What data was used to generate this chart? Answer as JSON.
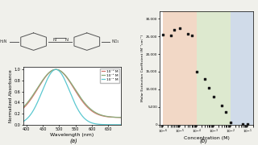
{
  "bg_color": "#f0f0eb",
  "panel_a": {
    "legend_labels": [
      "10⁻⁵ M",
      "10⁻³ M",
      "10⁻¹ M"
    ],
    "legend_colors": [
      "#d4756a",
      "#8aab7a",
      "#5bc8d0"
    ],
    "sigmas": [
      55,
      57,
      42
    ],
    "baselines": [
      0.13,
      0.13,
      0.0
    ],
    "peak_wavelength": 490,
    "xlabel": "Wavelength (nm)",
    "ylabel": "Normalized Absorbance",
    "xlabel_fontsize": 4.5,
    "ylabel_fontsize": 4.0,
    "title": "(a)",
    "ylim": [
      0.0,
      1.05
    ],
    "xlim": [
      390,
      690
    ],
    "xticks": [
      400,
      450,
      500,
      550,
      600,
      650
    ],
    "yticks": [
      0.0,
      0.2,
      0.4,
      0.6,
      0.8,
      1.0
    ]
  },
  "panel_b": {
    "xlabel": "Concentration (M)",
    "ylabel": "Molar Extinction Coefficient (M⁻¹cm⁻¹)",
    "title": "(b)",
    "ylim": [
      0,
      32000
    ],
    "bg_orange": {
      "xmin": 1e-06,
      "xmax": 0.0001,
      "color": "#e8b898",
      "alpha": 0.55
    },
    "bg_green": {
      "xmin": 0.0001,
      "xmax": 0.01,
      "color": "#c2d8a8",
      "alpha": 0.55
    },
    "bg_blue": {
      "xmin": 0.01,
      "xmax": 0.2,
      "color": "#aabfd8",
      "alpha": 0.55
    },
    "scatter_x": [
      1e-06,
      3e-06,
      5e-06,
      1e-05,
      3e-05,
      5e-05,
      0.0001,
      0.0003,
      0.0005,
      0.001,
      0.003,
      0.005,
      0.01,
      0.05,
      0.1
    ],
    "scatter_y": [
      25500,
      25200,
      26800,
      27200,
      25600,
      25300,
      15000,
      13000,
      10500,
      8000,
      5500,
      3500,
      600,
      200,
      150
    ],
    "marker_color": "#1a1a1a",
    "marker_size": 4,
    "yticks": [
      0,
      5000,
      10000,
      15000,
      20000,
      25000,
      30000
    ],
    "ytick_labels": [
      "0",
      "5,000",
      "10,000",
      "15,000",
      "20,000",
      "25,000",
      "30,000"
    ]
  }
}
